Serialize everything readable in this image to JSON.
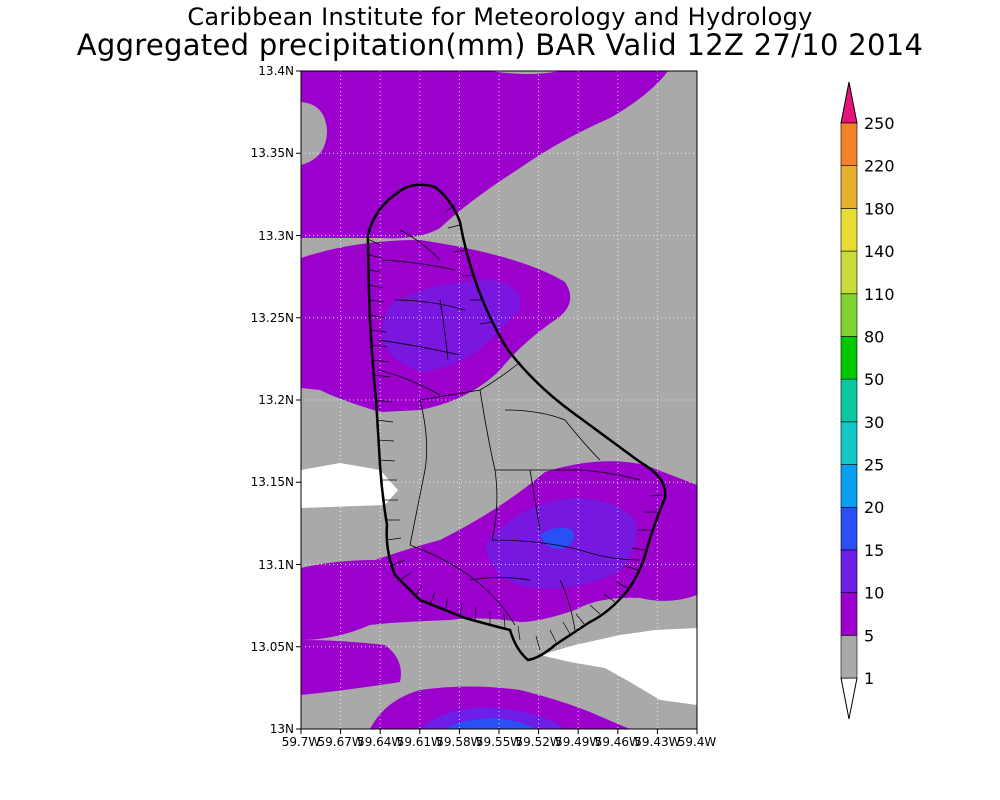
{
  "title": {
    "line1": "Caribbean Institute for Meteorology and Hydrology",
    "line2": "Aggregated precipitation(mm) BAR Valid 12Z 27/10 2014"
  },
  "map": {
    "region": "Barbados",
    "lon_range": [
      -59.7,
      -59.4
    ],
    "lat_range": [
      13.0,
      13.4
    ],
    "lon_tick_labels": [
      "59.7W",
      "59.67W",
      "59.64W",
      "59.61W",
      "59.58W",
      "59.55W",
      "59.52W",
      "59.49W",
      "59.46W",
      "59.43W",
      "59.4W"
    ],
    "lat_tick_labels": [
      "13N",
      "13.05N",
      "13.1N",
      "13.15N",
      "13.2N",
      "13.25N",
      "13.3N",
      "13.35N",
      "13.4N"
    ],
    "grid": "dotted",
    "colors": {
      "lt1": "#ffffff",
      "1-5": "#a9a9a9",
      "5-10": "#9b00cc",
      "10-15": "#6e1ee6",
      "15-20": "#2850f5"
    }
  },
  "colorbar": {
    "labels": [
      "1",
      "5",
      "10",
      "15",
      "20",
      "25",
      "30",
      "50",
      "80",
      "110",
      "140",
      "180",
      "220",
      "250"
    ],
    "colors": [
      "#a9a9a9",
      "#9b00cc",
      "#6e1ee6",
      "#2850f5",
      "#0aa0f0",
      "#14c8c8",
      "#0ac8a0",
      "#00c800",
      "#82d232",
      "#c8dc3c",
      "#e6dc32",
      "#e6af2d",
      "#f08228",
      "#fa3c3c"
    ],
    "lower_extend_color": "#ffffff",
    "upper_extend_color": "#e6147a"
  }
}
